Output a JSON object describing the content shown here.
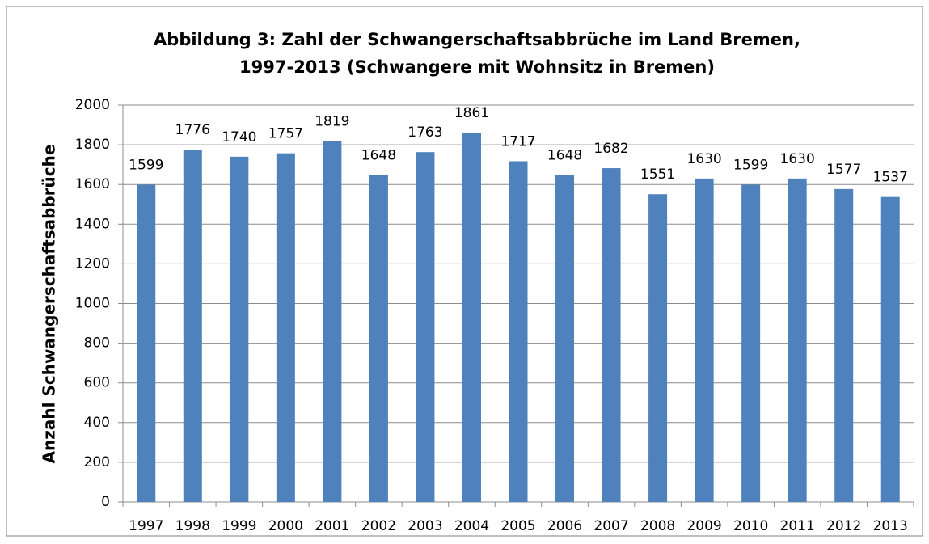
{
  "chart_data": {
    "type": "bar",
    "title": [
      "Abbildung  3: Zahl der Schwangerschaftsabbrüche im Land Bremen,",
      "1997-2013 (Schwangere mit Wohnsitz in Bremen)"
    ],
    "y_label": "Anzahl Schwangerschaftsabbrüche",
    "categories": [
      "1997",
      "1998",
      "1999",
      "2000",
      "2001",
      "2002",
      "2003",
      "2004",
      "2005",
      "2006",
      "2007",
      "2008",
      "2009",
      "2010",
      "2011",
      "2012",
      "2013"
    ],
    "values": [
      1599,
      1776,
      1740,
      1757,
      1819,
      1648,
      1763,
      1861,
      1717,
      1648,
      1682,
      1551,
      1630,
      1599,
      1630,
      1577,
      1537
    ],
    "color": "#4f81bd",
    "ylim": [
      0,
      2000
    ],
    "yticks": [
      0,
      200,
      400,
      600,
      800,
      1000,
      1200,
      1400,
      1600,
      1800,
      2000
    ],
    "grid": true
  }
}
